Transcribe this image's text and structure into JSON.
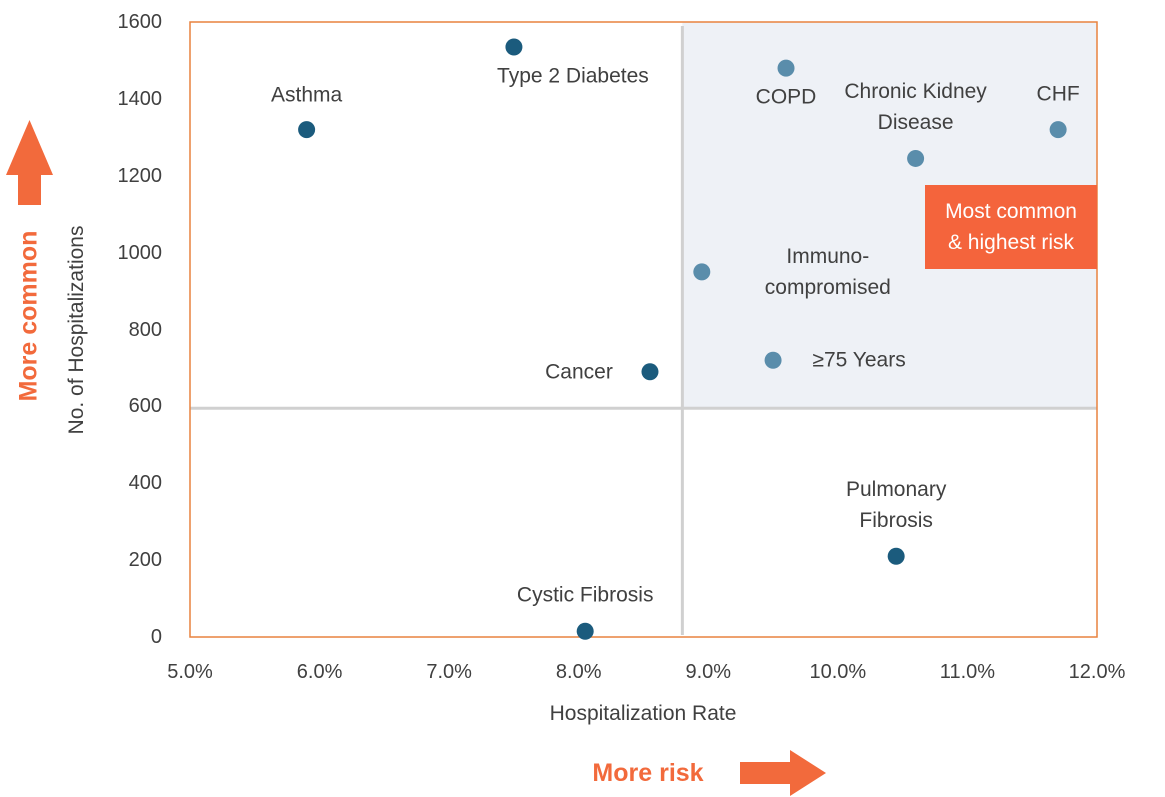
{
  "chart_data": {
    "type": "scatter",
    "x_label": "Hospitalization Rate",
    "y_label": "No. of Hospitalizations",
    "xlim": [
      5,
      12
    ],
    "ylim": [
      0,
      1600
    ],
    "xticks": [
      {
        "value": 5,
        "label": "5.0%"
      },
      {
        "value": 6,
        "label": "6.0%"
      },
      {
        "value": 7,
        "label": "7.0%"
      },
      {
        "value": 8,
        "label": "8.0%"
      },
      {
        "value": 9,
        "label": "9.0%"
      },
      {
        "value": 10,
        "label": "10.0%"
      },
      {
        "value": 11,
        "label": "11.0%"
      },
      {
        "value": 12,
        "label": "12.0%"
      }
    ],
    "yticks": [
      0,
      200,
      400,
      600,
      800,
      1000,
      1200,
      1400,
      1600
    ],
    "grid": false,
    "reference_lines": {
      "x": 8.8,
      "y": 595
    },
    "points": [
      {
        "label": "Asthma",
        "x": 5.9,
        "y": 1320,
        "color": "#1b5b7d"
      },
      {
        "label": "Type 2 Diabetes",
        "x": 7.5,
        "y": 1535,
        "color": "#1b5b7d"
      },
      {
        "label": "COPD",
        "x": 9.6,
        "y": 1480,
        "color": "#5a8dab"
      },
      {
        "label": "Chronic Kidney\nDisease",
        "x": 10.6,
        "y": 1245,
        "color": "#5a8dab"
      },
      {
        "label": "CHF",
        "x": 11.7,
        "y": 1320,
        "color": "#5a8dab"
      },
      {
        "label": "Immuno-\ncompromised",
        "x": 8.95,
        "y": 950,
        "color": "#5a8dab"
      },
      {
        "label": "≥75 Years",
        "x": 9.5,
        "y": 720,
        "color": "#5a8dab"
      },
      {
        "label": "Cancer",
        "x": 8.55,
        "y": 690,
        "color": "#1b5b7d"
      },
      {
        "label": "Pulmonary\nFibrosis",
        "x": 10.45,
        "y": 210,
        "color": "#1b5b7d"
      },
      {
        "label": "Cystic Fibrosis",
        "x": 8.05,
        "y": 15,
        "color": "#1b5b7d"
      }
    ],
    "annotation": "Most common & highest risk",
    "y_direction_label": "More common",
    "x_direction_label": "More risk"
  }
}
